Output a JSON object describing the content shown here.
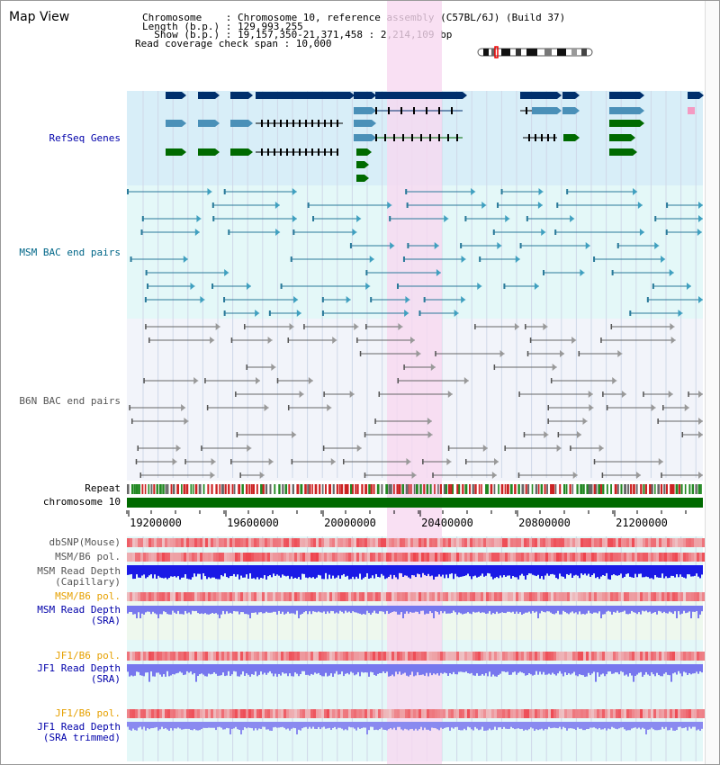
{
  "header": {
    "title": "Map View",
    "info_lines": [
      "Chromosome    : Chromosome 10, reference assembly (C57BL/6J) (Build 37)",
      "Length (b.p.) : 129,993,255",
      "  Show (b.p.) : 19,157,350-21,371,458 : 2,214,109 bp",
      "Read coverage check span : 10,000"
    ]
  },
  "tracks": {
    "refseq": {
      "label": "RefSeq Genes",
      "color": "#0000aa"
    },
    "msm_bac": {
      "label": "MSM BAC end pairs",
      "color": "#006688"
    },
    "b6n_bac": {
      "label": "B6N BAC end pairs",
      "color": "#555555"
    },
    "repeat": {
      "label": "Repeat"
    },
    "chromosome": {
      "label": "chromosome 10"
    },
    "dbsnp": {
      "label": "dbSNP(Mouse)"
    },
    "msm_pol": {
      "label": "MSM/B6 pol."
    },
    "msm_depth_cap": {
      "line1": "MSM Read Depth",
      "line2": "(Capillary)"
    },
    "msm_pol_sra": {
      "label": "MSM/B6 pol."
    },
    "msm_depth_sra": {
      "line1": "MSM Read Depth",
      "line2": "(SRA)"
    },
    "jf1_pol": {
      "label": "JF1/B6 pol."
    },
    "jf1_depth_sra": {
      "line1": "JF1 Read Depth",
      "line2": "(SRA)"
    },
    "jf1_pol_trim": {
      "label": "JF1/B6 pol."
    },
    "jf1_depth_trim": {
      "line1": "JF1 Read Depth",
      "line2": "(SRA trimmed)"
    }
  },
  "ruler": {
    "ticks": [
      "19200000",
      "19600000",
      "20000000",
      "20400000",
      "20800000",
      "21200000"
    ]
  },
  "colors": {
    "refseq_bg": "#d8eef8",
    "bac_bg": "#e4f8f8",
    "highlight": "#f8d8f0",
    "gene_dark": "#002f6c",
    "gene_mid": "#4a90b8",
    "gene_green": "#006a00",
    "chrom_green": "#006a00",
    "depth_blue": "#1a1ae6",
    "depth_light": "#7777ee",
    "pol_red": "#ee3333",
    "label_orange": "#e6a000",
    "label_blue": "#0000aa"
  }
}
